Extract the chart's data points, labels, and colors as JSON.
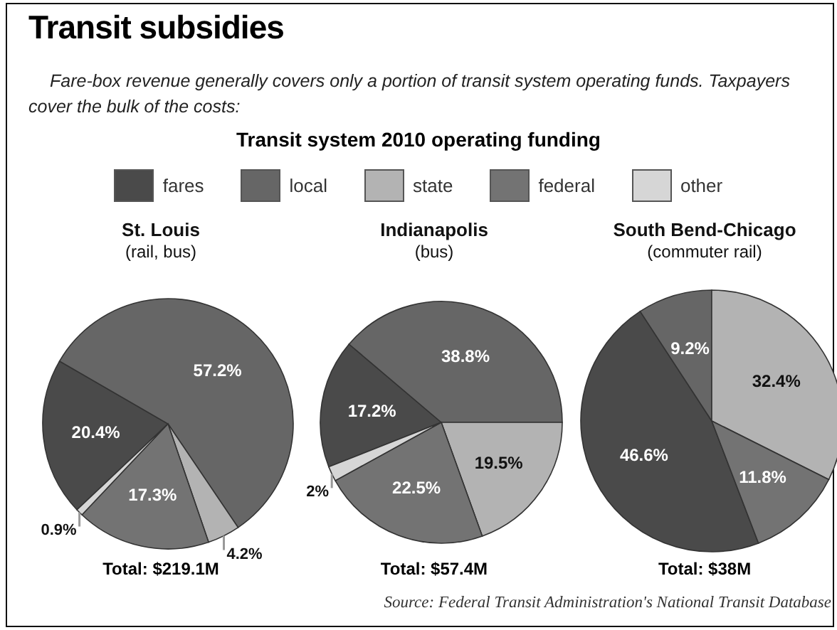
{
  "chart_data": [
    {
      "type": "other",
      "title": "Transit subsidies",
      "subtitle": "Fare-box revenue generally covers only a portion of transit system operating funds. Taxpayers cover the bulk of the costs:",
      "annotations": [
        "Transit system 2010 operating funding",
        "Source: Federal Transit Administration's National Transit Database"
      ]
    },
    {
      "type": "pie",
      "title": "St. Louis",
      "subtitle": "(rail, bus)",
      "legend": "top",
      "categories": [
        "fares",
        "local",
        "state",
        "federal",
        "other"
      ],
      "values": [
        20.4,
        57.2,
        4.2,
        17.3,
        0.9
      ],
      "value_labels": [
        "20.4%",
        "57.2%",
        "4.2%",
        "17.3%",
        "0.9%"
      ],
      "colors": [
        "#4a4a4a",
        "#666666",
        "#b3b3b3",
        "#737373",
        "#d6d6d6"
      ],
      "annotations": [
        "Total: $219.1M"
      ]
    },
    {
      "type": "pie",
      "title": "Indianapolis",
      "subtitle": "(bus)",
      "categories": [
        null,
        null,
        null,
        null,
        null
      ],
      "values": [
        17.2,
        38.8,
        19.5,
        22.5,
        2
      ],
      "value_labels": [
        "17.2%",
        "38.8%",
        "19.5%",
        "22.5%",
        "2%"
      ],
      "colors": [
        "#4a4a4a",
        "#666666",
        "#b3b3b3",
        "#737373",
        "#d6d6d6"
      ],
      "annotations": [
        "Total: $57.4M"
      ]
    },
    {
      "type": "pie",
      "title": "South Bend-Chicago",
      "subtitle": "(commuter rail)",
      "categories": [
        null,
        null,
        null,
        null
      ],
      "values": [
        46.6,
        9.2,
        32.4,
        11.8
      ],
      "value_labels": [
        "46.6%",
        "9.2%",
        "32.4%",
        "11.8%"
      ],
      "colors": [
        "#4a4a4a",
        "#666666",
        "#b3b3b3",
        "#737373"
      ],
      "annotations": [
        "Total: $38M"
      ]
    }
  ]
}
